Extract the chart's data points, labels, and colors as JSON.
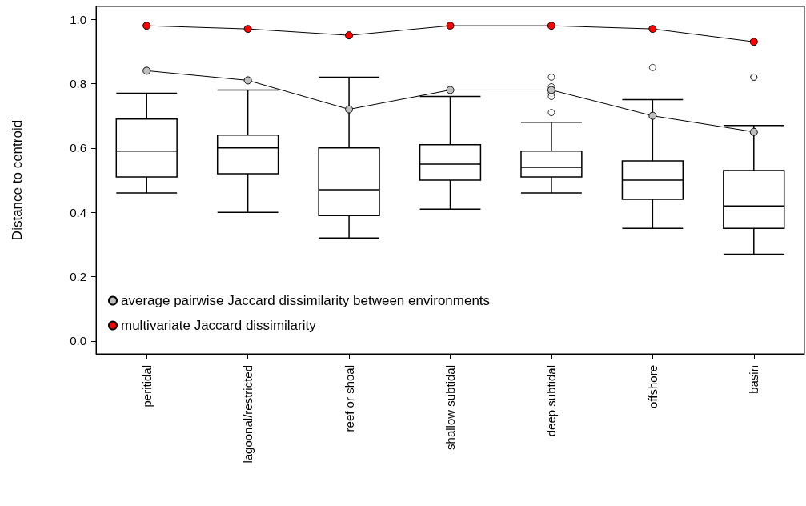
{
  "chart_data": {
    "type": "box",
    "ylabel": "Distance to centroid",
    "categories": [
      "peritidal",
      "lagoonal/restricted",
      "reef or shoal",
      "shallow subtidal",
      "deep subtidal",
      "offshore",
      "basin"
    ],
    "boxes": [
      {
        "low": 0.46,
        "q1": 0.51,
        "median": 0.59,
        "q3": 0.69,
        "high": 0.77
      },
      {
        "low": 0.4,
        "q1": 0.52,
        "median": 0.6,
        "q3": 0.64,
        "high": 0.78
      },
      {
        "low": 0.32,
        "q1": 0.39,
        "median": 0.47,
        "q3": 0.6,
        "high": 0.82
      },
      {
        "low": 0.41,
        "q1": 0.5,
        "median": 0.55,
        "q3": 0.61,
        "high": 0.76
      },
      {
        "low": 0.46,
        "q1": 0.51,
        "median": 0.54,
        "q3": 0.59,
        "high": 0.68,
        "outliers": [
          0.82,
          0.79,
          0.77,
          0.76,
          0.71
        ]
      },
      {
        "low": 0.35,
        "q1": 0.44,
        "median": 0.5,
        "q3": 0.56,
        "high": 0.75,
        "outliers": [
          0.85
        ]
      },
      {
        "low": 0.27,
        "q1": 0.35,
        "median": 0.42,
        "q3": 0.53,
        "high": 0.67,
        "outliers": [
          0.82,
          0.82
        ]
      }
    ],
    "series": [
      {
        "type": "line",
        "name": "average pairwise Jaccard dissimilarity between environments",
        "color": "#bebebe",
        "values": [
          0.84,
          0.81,
          0.72,
          0.78,
          0.78,
          0.7,
          0.65
        ]
      },
      {
        "type": "line",
        "name": "multivariate Jaccard dissimilarity",
        "color": "#ff0000",
        "values": [
          0.98,
          0.97,
          0.95,
          0.98,
          0.98,
          0.97,
          0.93
        ]
      }
    ],
    "marker": "circle",
    "ylim": [
      -0.04,
      1.04
    ],
    "yticks": [
      {
        "value": 0,
        "label": "0.0"
      },
      {
        "value": 0.2,
        "label": "0.2"
      },
      {
        "value": 0.4,
        "label": "0.4"
      },
      {
        "value": 0.6,
        "label": "0.6"
      },
      {
        "value": 0.8,
        "label": "0.8"
      },
      {
        "value": 1,
        "label": "1.0"
      }
    ],
    "grid": false,
    "legend": "bottom left"
  }
}
